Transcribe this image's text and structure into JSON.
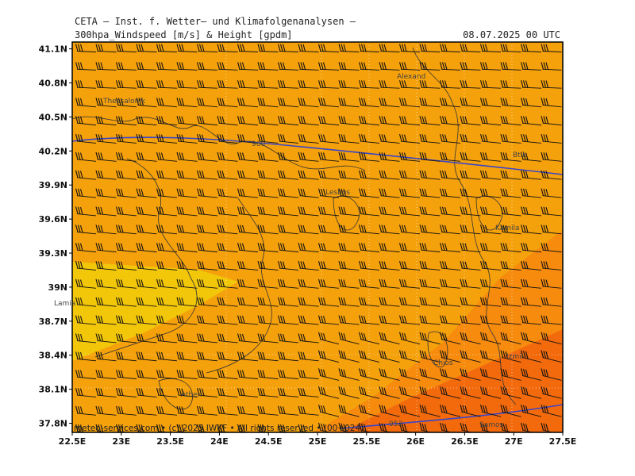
{
  "header": {
    "source_title": "CETA – Inst. f. Wetter– und Klimafolgenanalysen –",
    "parameter": "300hpa_Windspeed [m/s] & Height [gpdm]",
    "valid_time": "08.07.2025 00 UTC"
  },
  "map": {
    "lon_range": [
      22.5,
      27.5
    ],
    "lat_range": [
      37.72,
      41.16
    ],
    "x_ticks": [
      "22.5E",
      "23E",
      "23.5E",
      "24E",
      "24.5E",
      "25E",
      "25.5E",
      "26E",
      "26.5E",
      "27E",
      "27.5E"
    ],
    "y_ticks": [
      "41.1N",
      "40.8N",
      "40.5N",
      "40.2N",
      "39.9N",
      "39.6N",
      "39.3N",
      "39N",
      "38.7N",
      "38.4N",
      "38.1N",
      "37.8N"
    ],
    "height_contour_labels": [
      "960",
      "952"
    ],
    "place_labels": [
      "Alexand",
      "Thessalonik",
      "Btik",
      "Lamia",
      "Athen",
      "Chios",
      "Izmir",
      "Lesbos",
      "Samos",
      "Kamila"
    ],
    "footer": "meteo-services.com • (c) 2025 IWKF • All rights reserved • (00+024)",
    "colors": {
      "band_yellow": "#f2c70a",
      "band_amber": "#f5a10c",
      "band_orange": "#f68b0e",
      "band_deep": "#f36a0c",
      "contour": "#3a45c8",
      "barb": "#111111"
    }
  }
}
